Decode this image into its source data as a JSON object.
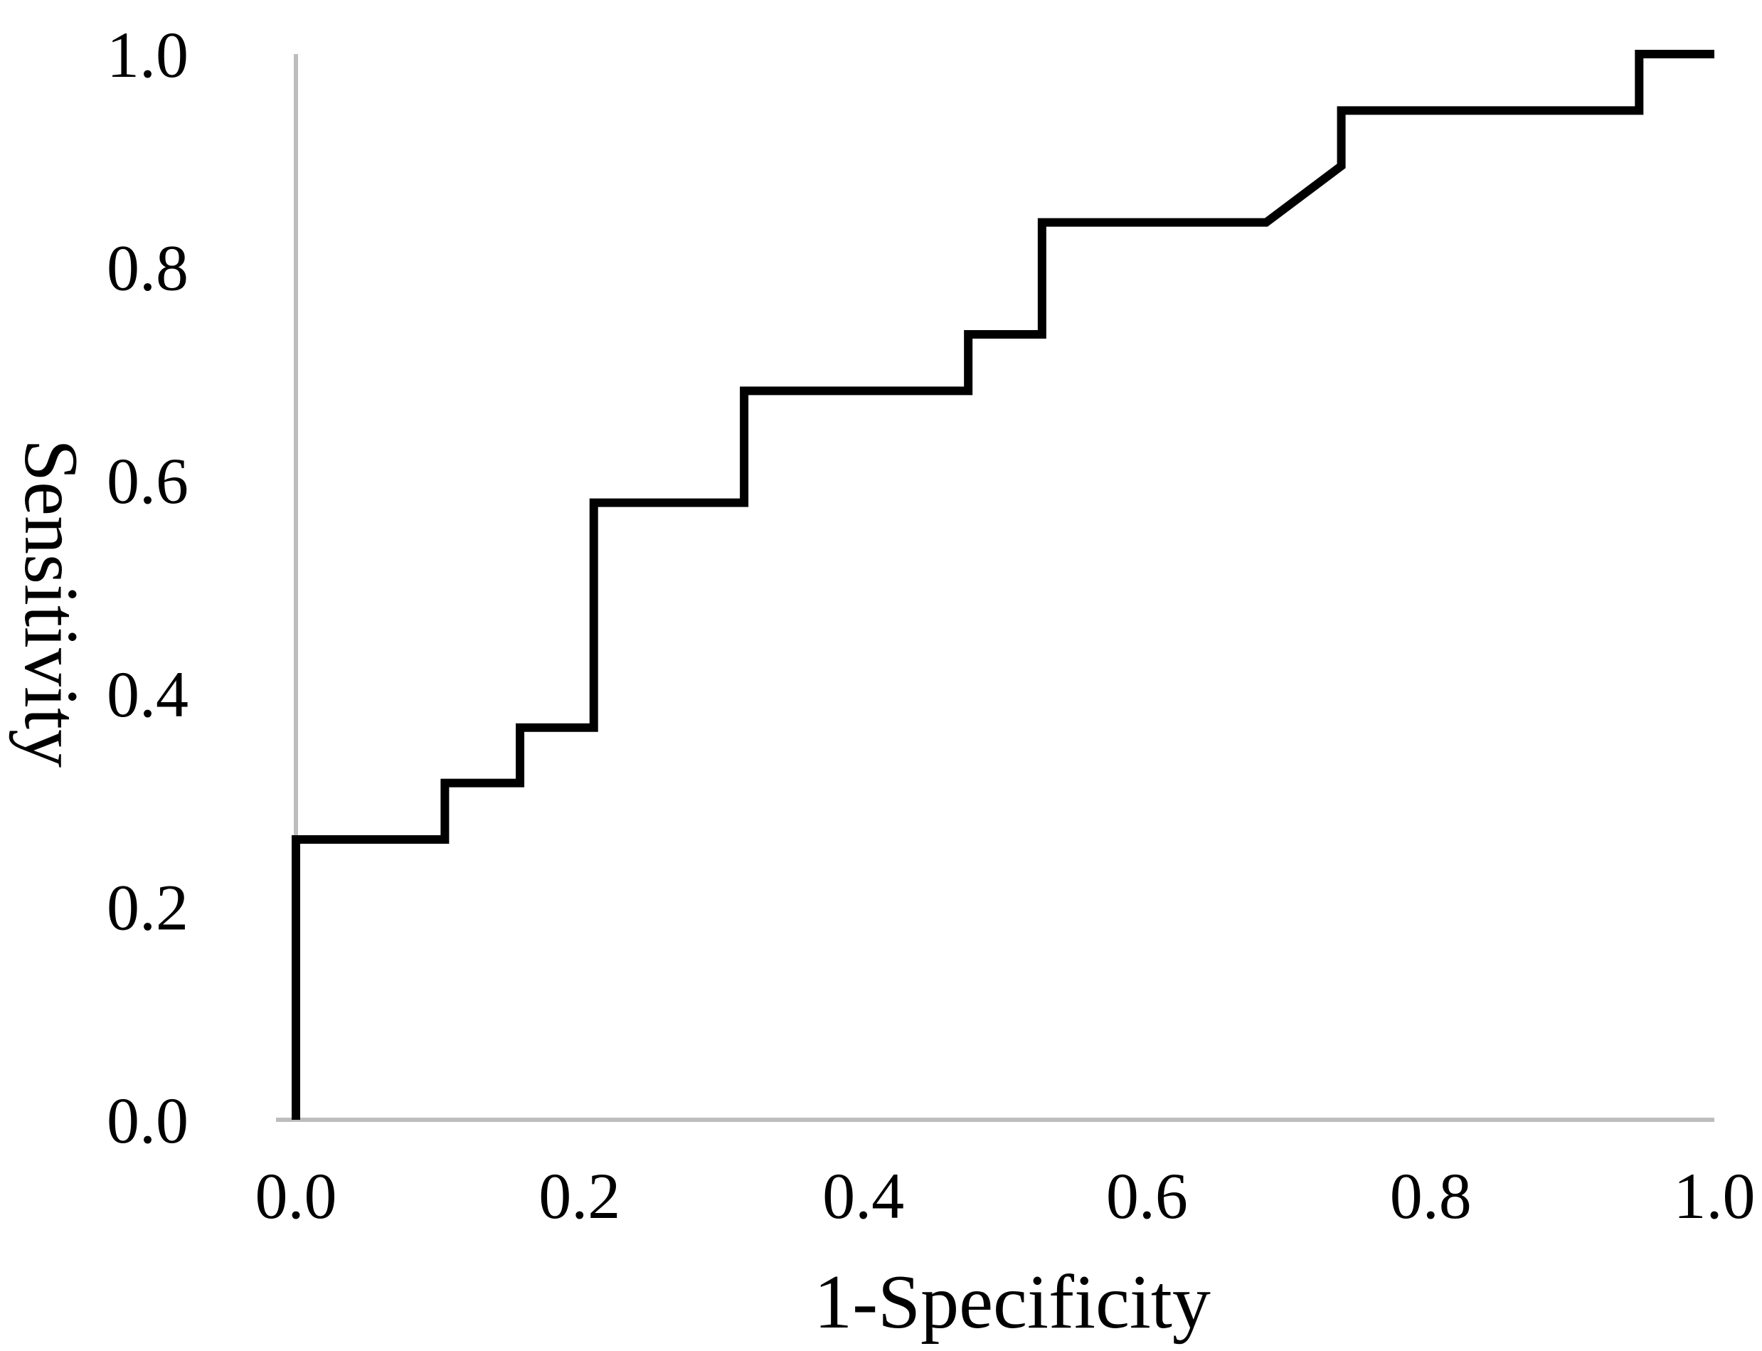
{
  "chart_data": {
    "type": "line",
    "title": "",
    "xlabel": "1-Specificity",
    "ylabel": "Sensitivity",
    "xlim": [
      0,
      1
    ],
    "ylim": [
      0,
      1
    ],
    "xticks": [
      "0.0",
      "0.2",
      "0.4",
      "0.6",
      "0.8",
      "1.0"
    ],
    "yticks": [
      "0.0",
      "0.2",
      "0.4",
      "0.6",
      "0.8",
      "1.0"
    ],
    "grid": false,
    "legend": "none",
    "series": [
      {
        "color": "#000000",
        "x": [
          0.0,
          0.0,
          0.105,
          0.105,
          0.158,
          0.158,
          0.21,
          0.21,
          0.316,
          0.316,
          0.474,
          0.474,
          0.526,
          0.526,
          0.684,
          0.737,
          0.737,
          0.947,
          0.947,
          1.0
        ],
        "y": [
          0.0,
          0.263,
          0.263,
          0.316,
          0.316,
          0.368,
          0.368,
          0.579,
          0.579,
          0.684,
          0.684,
          0.737,
          0.737,
          0.842,
          0.842,
          0.895,
          0.947,
          0.947,
          1.0,
          1.0
        ]
      }
    ]
  }
}
